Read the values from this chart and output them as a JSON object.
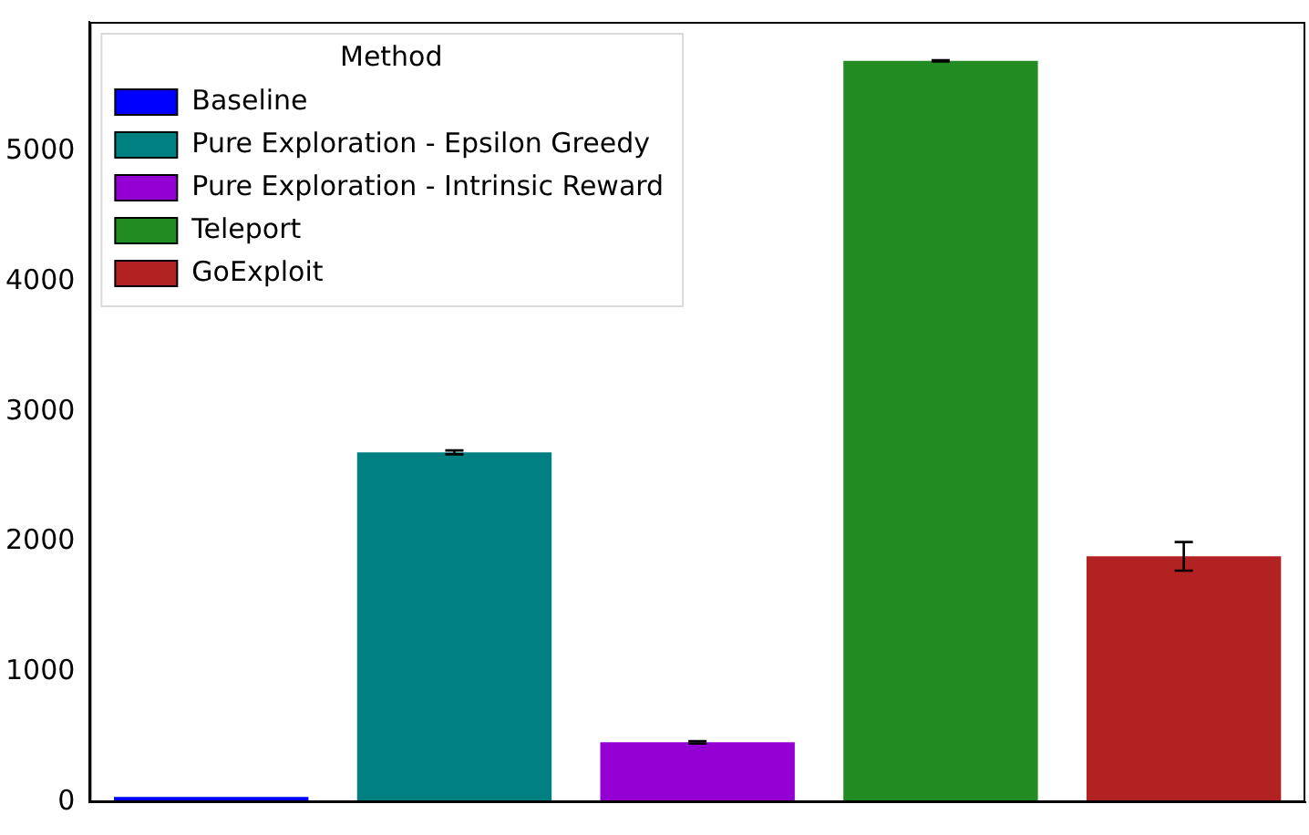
{
  "chart_data": {
    "type": "bar",
    "categories": [
      null,
      null,
      null,
      null,
      null
    ],
    "series": [
      {
        "name": "Baseline",
        "color": "#0000ff",
        "values": [
          40,
          null,
          null,
          null,
          null
        ]
      },
      {
        "name": "Pure Exploration - Epsilon Greedy",
        "color": "#008080",
        "values": [
          null,
          2690,
          null,
          null,
          null
        ],
        "errors": [
          null,
          15,
          null,
          null,
          null
        ]
      },
      {
        "name": "Pure Exploration - Intrinsic Reward",
        "color": "#9400d3",
        "values": [
          null,
          null,
          460,
          null,
          null
        ],
        "errors": [
          null,
          null,
          10,
          null,
          null
        ]
      },
      {
        "name": "Teleport",
        "color": "#228b22",
        "values": [
          null,
          null,
          null,
          5700,
          null
        ],
        "errors": [
          null,
          null,
          null,
          5,
          null
        ]
      },
      {
        "name": "GoExploit",
        "color": "#b22222",
        "values": [
          null,
          null,
          null,
          null,
          1890
        ],
        "errors": [
          null,
          null,
          null,
          null,
          110
        ]
      }
    ],
    "ylim": [
      0,
      6000
    ],
    "yticks": [
      0,
      1000,
      2000,
      3000,
      4000,
      5000
    ],
    "grid": false,
    "legend": "top left",
    "legend_title": "Method",
    "tick_labels": "y"
  }
}
